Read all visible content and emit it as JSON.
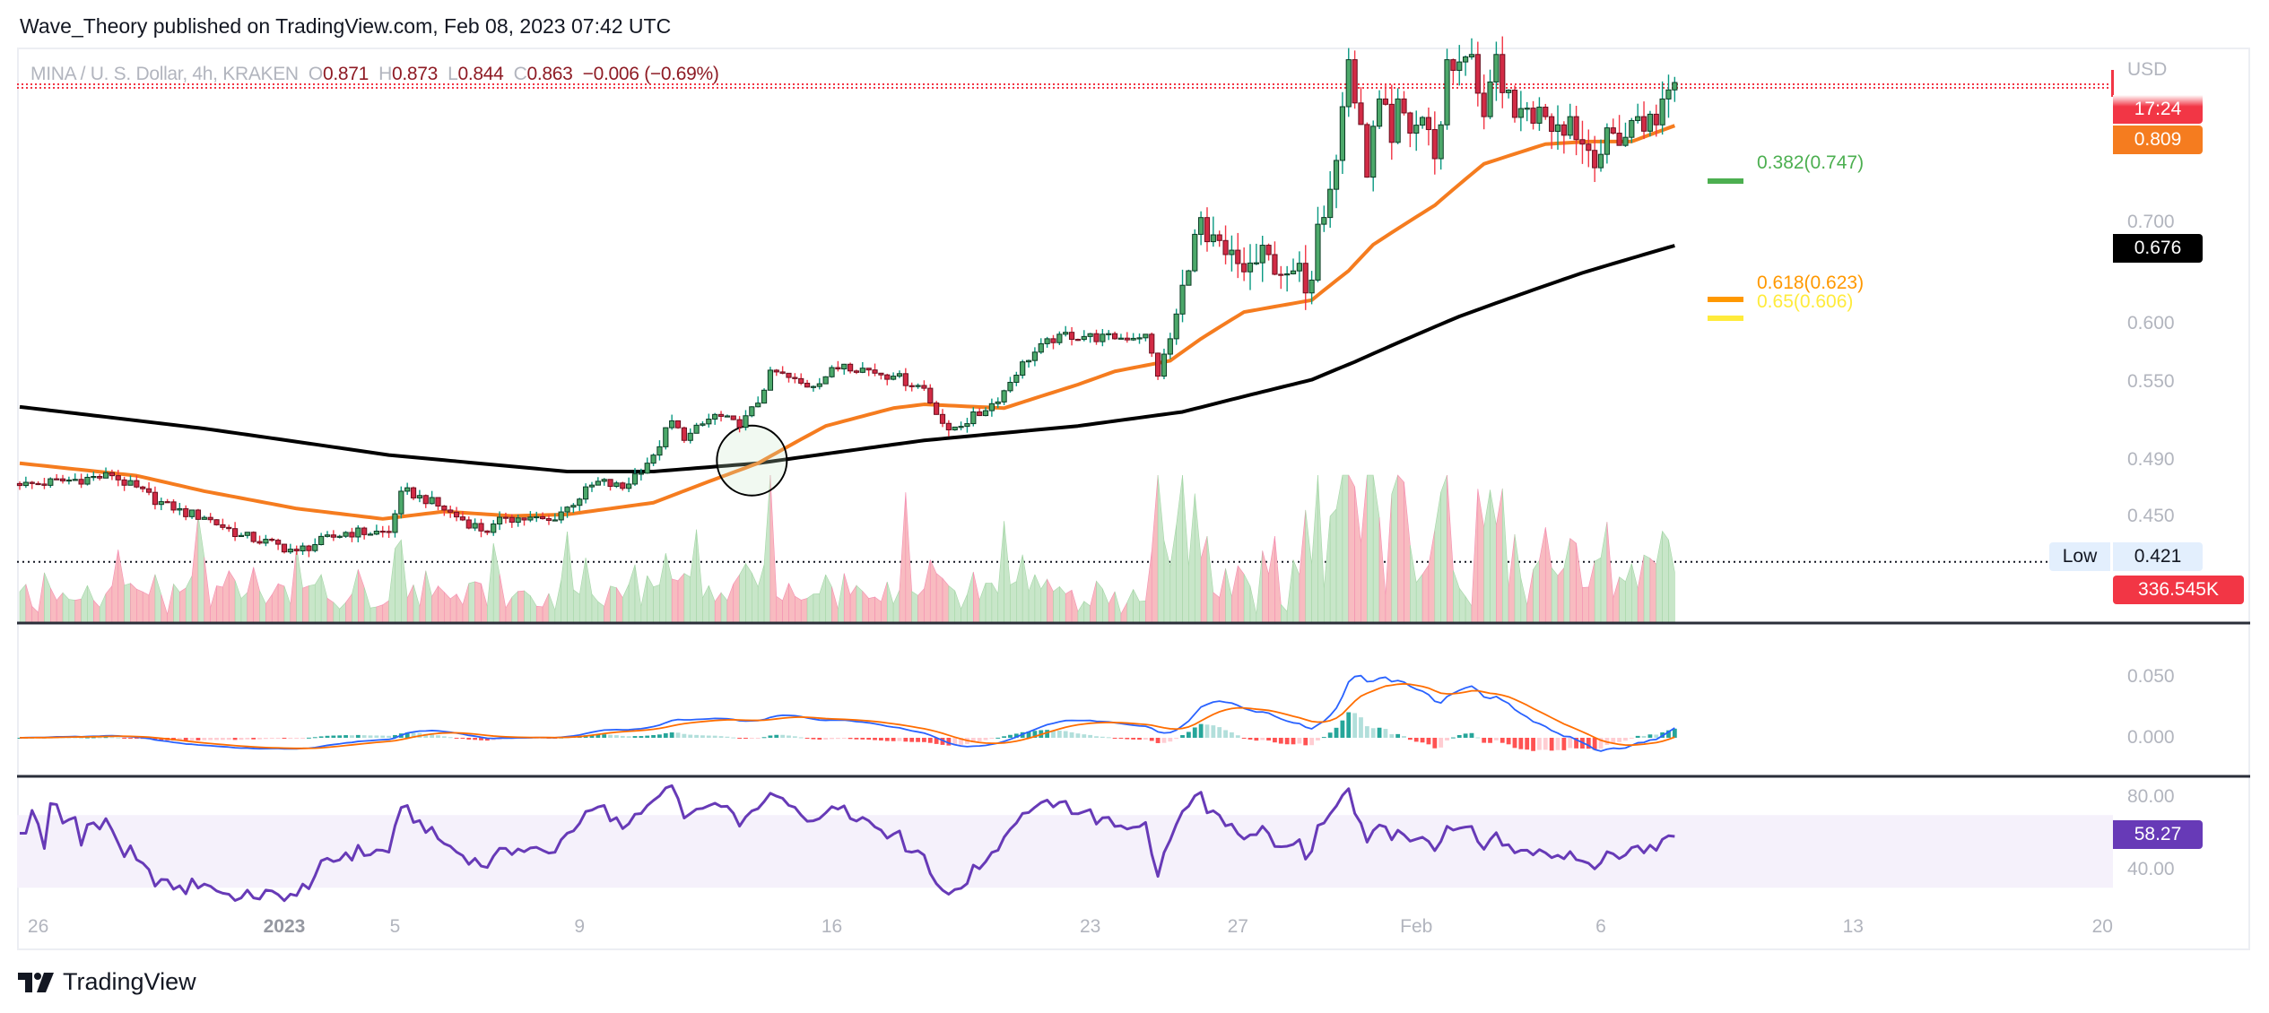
{
  "header": {
    "publisher_line": "Wave_Theory published on TradingView.com, Feb 08, 2023 07:42 UTC"
  },
  "legend": {
    "symbol": "MINA / U. S. Dollar, 4h, KRAKEN",
    "open_label": "O",
    "open": "0.871",
    "high_label": "H",
    "high": "0.873",
    "low_label": "L",
    "low": "0.844",
    "close_label": "C",
    "close": "0.863",
    "change": "−0.006 (−0.69%)"
  },
  "price_axis": {
    "currency": "USD",
    "ticks": [
      "0.700",
      "0.600",
      "0.550",
      "0.490",
      "0.450"
    ],
    "countdown": "17:24",
    "ema_value": "0.809",
    "sma_value": "0.676",
    "low_label": "Low",
    "low_value": "0.421",
    "volume_value": "336.545K"
  },
  "fib_levels": [
    {
      "label": "0.382(0.747)",
      "color": "#4caf50"
    },
    {
      "label": "0.618(0.623)",
      "color": "#ff9800"
    },
    {
      "label": "0.65(0.606)",
      "color": "#ffeb3b"
    }
  ],
  "macd_axis": {
    "ticks": [
      "0.050",
      "0.000"
    ]
  },
  "rsi_axis": {
    "ticks": [
      "80.00",
      "40.00"
    ],
    "value": "58.27"
  },
  "time_axis": [
    {
      "label": "26",
      "bar": 3
    },
    {
      "label": "2023",
      "bar": 43,
      "bold": true
    },
    {
      "label": "5",
      "bar": 61
    },
    {
      "label": "9",
      "bar": 91
    },
    {
      "label": "16",
      "bar": 132
    },
    {
      "label": "23",
      "bar": 174
    },
    {
      "label": "27",
      "bar": 198
    },
    {
      "label": "Feb",
      "bar": 227
    },
    {
      "label": "6",
      "bar": 257
    },
    {
      "label": "13",
      "bar": 298
    },
    {
      "label": "20",
      "bar": 338
    }
  ],
  "footer": {
    "logo_text": "TradingView"
  },
  "colors": {
    "up": "#089981",
    "down": "#f23645",
    "ema": "#f57c1f",
    "sma": "#000000",
    "macd": "#2962ff",
    "signal": "#ff6d00",
    "rsi": "#673ab7"
  },
  "chart_data": {
    "type": "candlestick",
    "title": "MINA / U. S. Dollar, 4h, KRAKEN",
    "bars": 270,
    "y_scale": "log",
    "ylim": [
      0.41,
      0.91
    ],
    "close_keypoints": [
      [
        0,
        0.472
      ],
      [
        15,
        0.479
      ],
      [
        25,
        0.455
      ],
      [
        30,
        0.45
      ],
      [
        36,
        0.438
      ],
      [
        45,
        0.428
      ],
      [
        53,
        0.44
      ],
      [
        60,
        0.44
      ],
      [
        62,
        0.468
      ],
      [
        65,
        0.465
      ],
      [
        69,
        0.455
      ],
      [
        76,
        0.44
      ],
      [
        79,
        0.45
      ],
      [
        86,
        0.448
      ],
      [
        89,
        0.457
      ],
      [
        94,
        0.475
      ],
      [
        98,
        0.47
      ],
      [
        103,
        0.494
      ],
      [
        106,
        0.52
      ],
      [
        108,
        0.505
      ],
      [
        113,
        0.525
      ],
      [
        117,
        0.515
      ],
      [
        120,
        0.534
      ],
      [
        122,
        0.561
      ],
      [
        128,
        0.547
      ],
      [
        134,
        0.566
      ],
      [
        142,
        0.556
      ],
      [
        147,
        0.546
      ],
      [
        149,
        0.525
      ],
      [
        151,
        0.513
      ],
      [
        157,
        0.528
      ],
      [
        160,
        0.544
      ],
      [
        163,
        0.568
      ],
      [
        169,
        0.592
      ],
      [
        173,
        0.59
      ],
      [
        178,
        0.588
      ],
      [
        183,
        0.592
      ],
      [
        185,
        0.556
      ],
      [
        187,
        0.588
      ],
      [
        190,
        0.651
      ],
      [
        192,
        0.705
      ],
      [
        193,
        0.68
      ],
      [
        196,
        0.667
      ],
      [
        199,
        0.65
      ],
      [
        203,
        0.667
      ],
      [
        206,
        0.648
      ],
      [
        210,
        0.642
      ],
      [
        211,
        0.698
      ],
      [
        214,
        0.768
      ],
      [
        216,
        0.893
      ],
      [
        217,
        0.837
      ],
      [
        219,
        0.749
      ],
      [
        221,
        0.842
      ],
      [
        223,
        0.789
      ],
      [
        224,
        0.842
      ],
      [
        226,
        0.8
      ],
      [
        228,
        0.819
      ],
      [
        230,
        0.77
      ],
      [
        231,
        0.81
      ],
      [
        232,
        0.893
      ],
      [
        234,
        0.89
      ],
      [
        236,
        0.9
      ],
      [
        238,
        0.82
      ],
      [
        240,
        0.9
      ],
      [
        241,
        0.85
      ],
      [
        244,
        0.83
      ],
      [
        248,
        0.82
      ],
      [
        250,
        0.81
      ],
      [
        252,
        0.82
      ],
      [
        254,
        0.787
      ],
      [
        257,
        0.775
      ],
      [
        259,
        0.8
      ],
      [
        261,
        0.795
      ],
      [
        263,
        0.82
      ],
      [
        266,
        0.81
      ],
      [
        267,
        0.842
      ],
      [
        269,
        0.863
      ]
    ],
    "ema_keypoints": [
      [
        0,
        0.488
      ],
      [
        19,
        0.479
      ],
      [
        30,
        0.468
      ],
      [
        45,
        0.456
      ],
      [
        59,
        0.449
      ],
      [
        69,
        0.454
      ],
      [
        80,
        0.451
      ],
      [
        89,
        0.452
      ],
      [
        103,
        0.46
      ],
      [
        120,
        0.488
      ],
      [
        131,
        0.516
      ],
      [
        142,
        0.53
      ],
      [
        147,
        0.533
      ],
      [
        160,
        0.53
      ],
      [
        172,
        0.549
      ],
      [
        178,
        0.56
      ],
      [
        187,
        0.569
      ],
      [
        192,
        0.588
      ],
      [
        199,
        0.612
      ],
      [
        210,
        0.623
      ],
      [
        216,
        0.651
      ],
      [
        220,
        0.677
      ],
      [
        230,
        0.718
      ],
      [
        238,
        0.764
      ],
      [
        248,
        0.787
      ],
      [
        255,
        0.79
      ],
      [
        262,
        0.79
      ],
      [
        269,
        0.809
      ]
    ],
    "sma_keypoints": [
      [
        0,
        0.531
      ],
      [
        30,
        0.514
      ],
      [
        60,
        0.494
      ],
      [
        89,
        0.482
      ],
      [
        103,
        0.482
      ],
      [
        120,
        0.488
      ],
      [
        147,
        0.505
      ],
      [
        172,
        0.516
      ],
      [
        189,
        0.527
      ],
      [
        210,
        0.553
      ],
      [
        217,
        0.568
      ],
      [
        234,
        0.608
      ],
      [
        254,
        0.649
      ],
      [
        269,
        0.676
      ]
    ],
    "fib_values": [
      0.747,
      0.623,
      0.606
    ],
    "low_value": 0.421,
    "last_price": 0.863,
    "annotation": {
      "type": "circle",
      "bar": 119,
      "price": 0.49
    },
    "indicators": [
      "Volume",
      "MACD",
      "RSI"
    ],
    "rsi_band": [
      30,
      70
    ],
    "rsi_last": 58.27,
    "volume_last": "336.545K"
  }
}
